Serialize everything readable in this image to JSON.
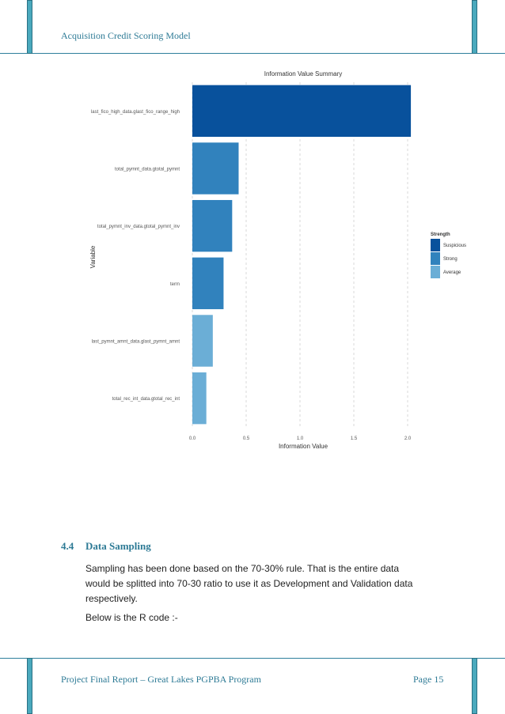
{
  "header": {
    "title": "Acquisition Credit Scoring Model"
  },
  "footer": {
    "left": "Project Final Report – Great Lakes PGPBA Program",
    "right": "Page 15"
  },
  "section": {
    "number": "4.4",
    "title": "Data Sampling",
    "paragraph_lines": [
      "Sampling has been done based on the 70-30% rule. That is the entire data",
      "would be splitted into 70-30 ratio to use it as Development and Validation data",
      "respectively."
    ],
    "code_intro": "Below is the R code :-"
  },
  "chart_data": {
    "type": "bar",
    "orientation": "horizontal",
    "title": "Information Value Summary",
    "xlabel": "Information Value",
    "ylabel": "Variable",
    "xlim": [
      0,
      2.0
    ],
    "xticks": [
      "0.0",
      "0.5",
      "1.0",
      "1.5",
      "2.0"
    ],
    "grid": true,
    "categories": [
      "last_fico_high_data.glast_fico_range_high",
      "total_pymnt_data.gtotal_pymnt",
      "total_pymnt_inv_data.gtotal_pymnt_inv",
      "term",
      "last_pymnt_amnt_data.glast_pymnt_amnt",
      "total_rec_int_data.gtotal_rec_int"
    ],
    "values": [
      2.03,
      0.43,
      0.37,
      0.29,
      0.19,
      0.13
    ],
    "strength": [
      "Suspicious",
      "Strong",
      "Strong",
      "Strong",
      "Average",
      "Average"
    ],
    "legend": {
      "title": "Strength",
      "placement": "right",
      "entries": [
        {
          "label": "Suspicious",
          "color": "#08519c"
        },
        {
          "label": "Strong",
          "color": "#3182bd"
        },
        {
          "label": "Average",
          "color": "#6baed6"
        }
      ]
    }
  }
}
